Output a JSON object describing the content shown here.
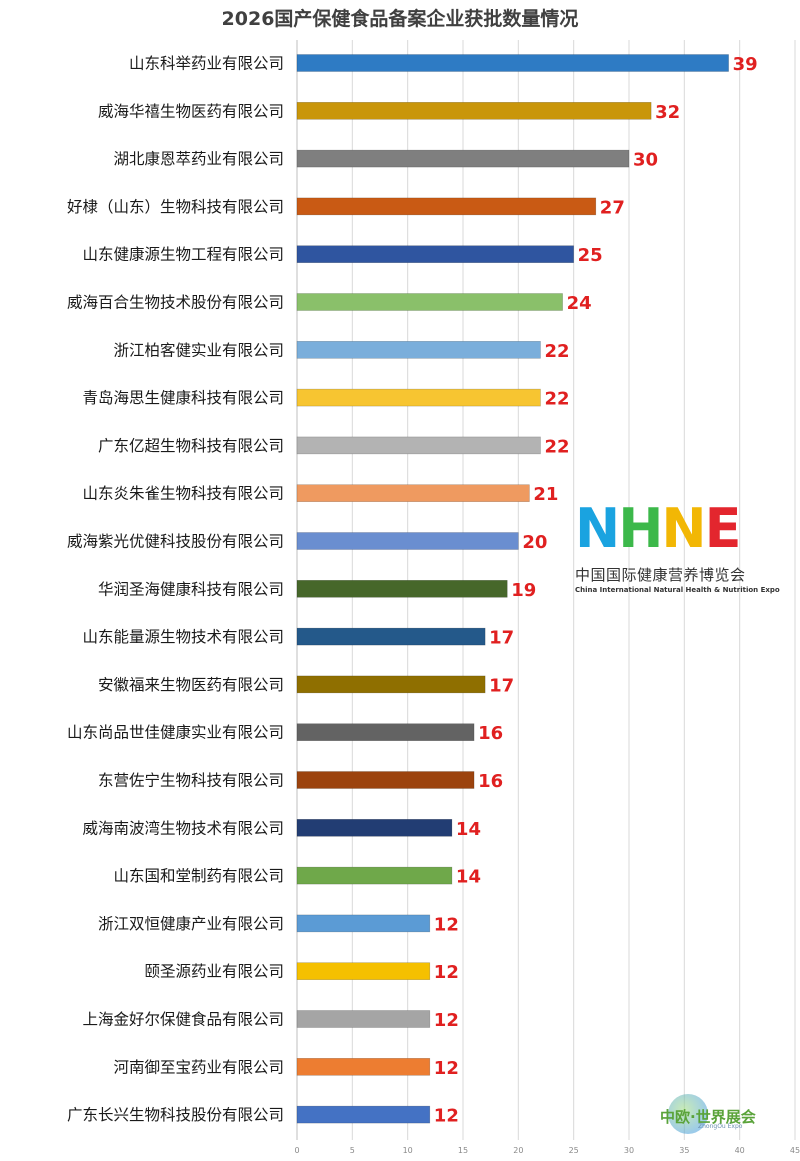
{
  "chart_data": {
    "type": "bar",
    "orientation": "horizontal",
    "title": "2026国产保健食品备案企业获批数量情况",
    "categories": [
      "山东科举药业有限公司",
      "威海华禧生物医药有限公司",
      "湖北康恩萃药业有限公司",
      "好棣（山东）生物科技有限公司",
      "山东健康源生物工程有限公司",
      "威海百合生物技术股份有限公司",
      "浙江柏客健实业有限公司",
      "青岛海思生健康科技有限公司",
      "广东亿超生物科技有限公司",
      "山东炎朱雀生物科技有限公司",
      "威海紫光优健科技股份有限公司",
      "华润圣海健康科技有限公司",
      "山东能量源生物技术有限公司",
      "安徽福来生物医药有限公司",
      "山东尚品世佳健康实业有限公司",
      "东营佐宁生物科技有限公司",
      "威海南波湾生物技术有限公司",
      "山东国和堂制药有限公司",
      "浙江双恒健康产业有限公司",
      "颐圣源药业有限公司",
      "上海金好尔保健食品有限公司",
      "河南御至宝药业有限公司",
      "广东长兴生物科技股份有限公司"
    ],
    "values": [
      39,
      32,
      30,
      27,
      25,
      24,
      22,
      22,
      22,
      21,
      20,
      19,
      17,
      17,
      16,
      16,
      14,
      14,
      12,
      12,
      12,
      12,
      12
    ],
    "colors": [
      "#2e7bc4",
      "#c9960a",
      "#7f7f7f",
      "#c95a14",
      "#2f55a0",
      "#8ac06a",
      "#7aaedb",
      "#f7c531",
      "#b3b3b3",
      "#ef9a60",
      "#6a8ed0",
      "#46672a",
      "#24598a",
      "#8f6f00",
      "#636363",
      "#9c430e",
      "#223d73",
      "#6fa84a",
      "#5b9bd5",
      "#f5c000",
      "#a5a5a5",
      "#ed7d31",
      "#4472c4"
    ],
    "xlim": [
      0,
      45
    ],
    "xticks": [
      0,
      5,
      10,
      15,
      20,
      25,
      30,
      35,
      40,
      45
    ],
    "grid": true
  },
  "logos": {
    "nhne": {
      "letters": [
        "N",
        "H",
        "N",
        "E"
      ],
      "cn": "中国国际健康营养博览会",
      "en": "China International Natural Health & Nutrition Expo"
    },
    "expo": {
      "name": "中欧·世界展会",
      "sub": "ZhongOu Expo"
    }
  }
}
